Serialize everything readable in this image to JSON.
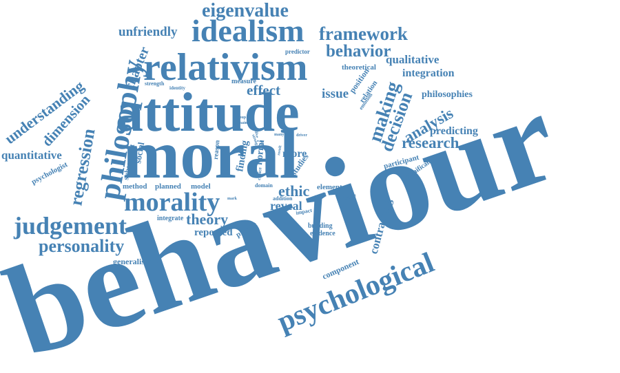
{
  "color": "#4682b4",
  "words": {
    "behaviour": "behaviour",
    "moral": "moral",
    "attitude": "attitude",
    "relativism": "relativism",
    "idealism": "idealism",
    "eigenvalue": "eigenvalue",
    "framework": "framework",
    "behavior": "behavior",
    "unfriendly": "unfriendly",
    "philosophy": "philosophy",
    "chapter": "chapter",
    "understanding": "understanding",
    "dimension": "dimension",
    "quantitative": "quantitative",
    "psychologist": "psychologist",
    "regression": "regression",
    "subsequent": "subsequent",
    "social": "social",
    "morality": "morality",
    "judgement": "judgement",
    "personality": "personality",
    "generalisable": "generalisable",
    "theory": "theory",
    "reported": "reported",
    "integrate": "integrate",
    "method": "method",
    "planned": "planned",
    "model": "model",
    "effect": "effect",
    "issue": "issue",
    "measure": "measure",
    "identity": "identity",
    "strength": "strength",
    "finding": "finding",
    "normi": "normi",
    "more": "more",
    "studies": "studies",
    "ethic": "ethic",
    "element": "element",
    "reveal": "reveal",
    "predict": "predict",
    "addition": "addition",
    "rational": "rational",
    "impact": "impact",
    "building": "building",
    "evidence": "evidence",
    "domain": "domain",
    "choice": "choice",
    "reason": "reason",
    "making": "making",
    "decision": "decision",
    "analysis": "analysis",
    "predicting": "predicting",
    "research": "research",
    "philosophies": "philosophies",
    "integration": "integration",
    "qualitative": "qualitative",
    "theoretical": "theoretical",
    "predictor": "predictor",
    "position": "position",
    "relation": "relation",
    "emotion": "emotion",
    "participant": "participant",
    "significant": "significant",
    "change": "change",
    "contrasting": "contrasting",
    "component": "component",
    "psychological": "psychological",
    "group": "group",
    "main": "main",
    "strong": "strong",
    "self": "self",
    "many": "many",
    "driver": "driver",
    "basis": "basis",
    "result": "result",
    "dive": "dive",
    "mark": "mark"
  }
}
